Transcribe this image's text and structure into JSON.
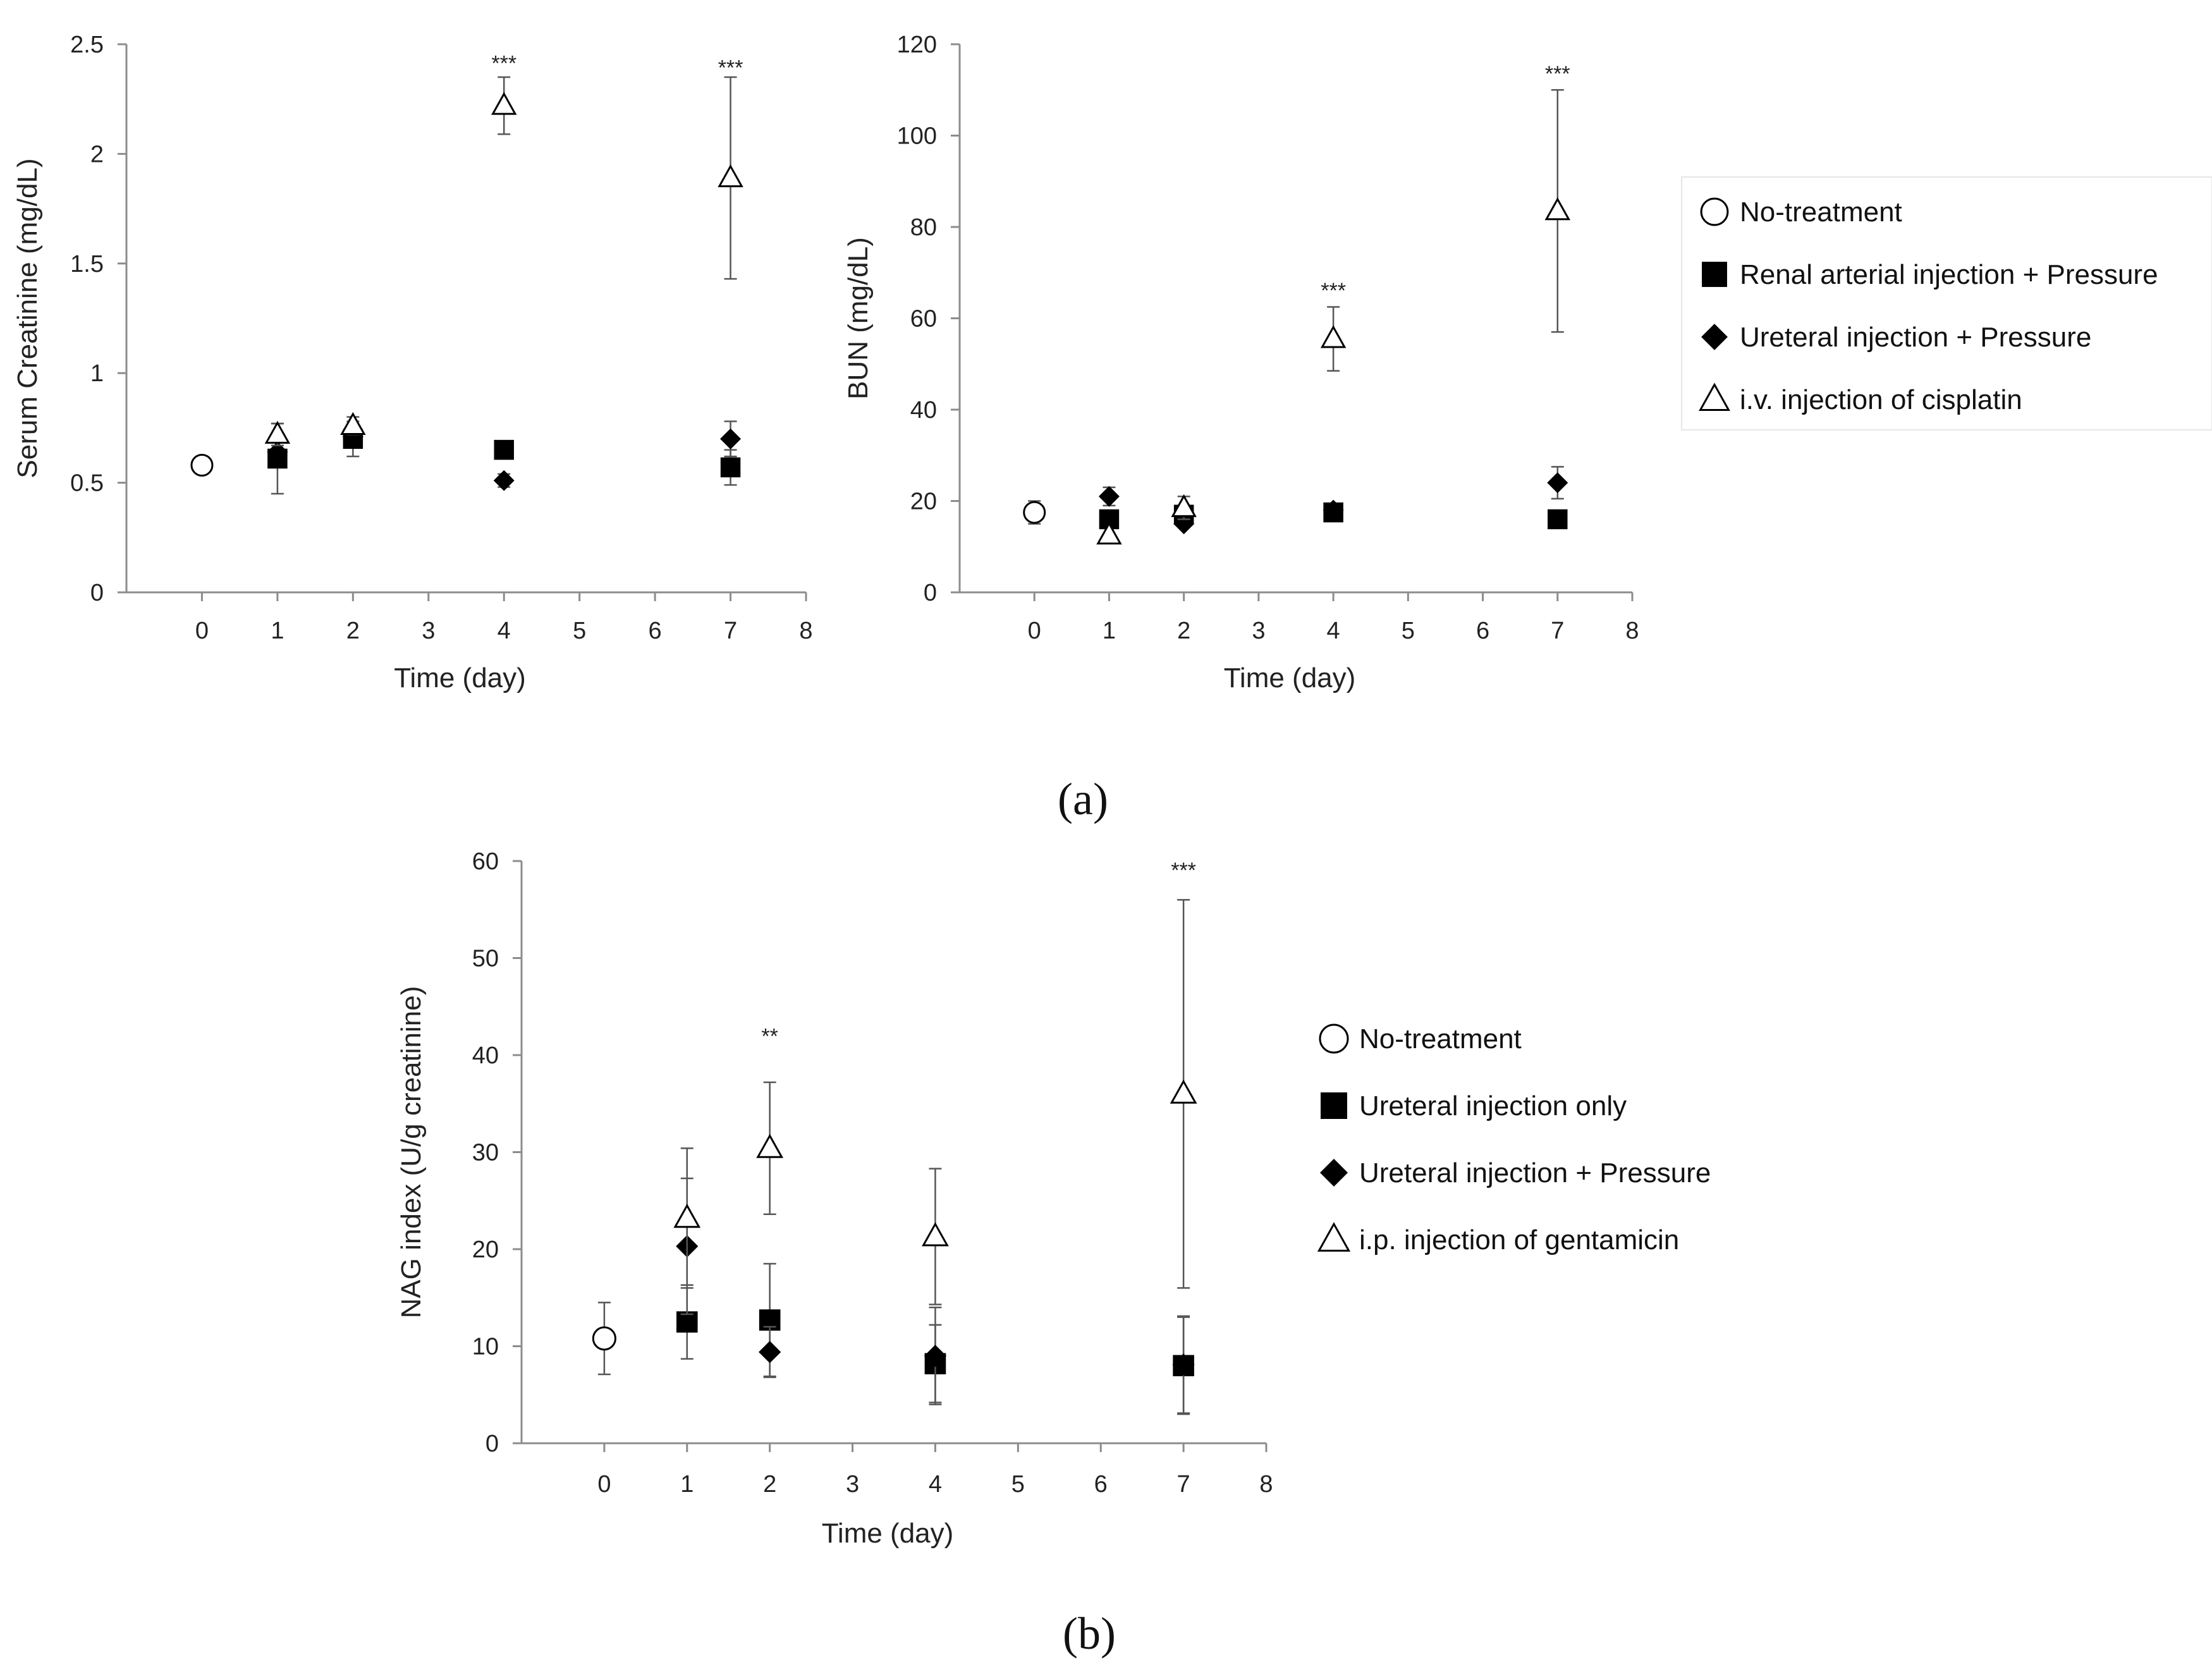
{
  "colors": {
    "axis": "#8c8c8c",
    "marker": "#000000",
    "errorbar": "#555555",
    "legend_border": "#e6e6e6"
  },
  "panel_labels": {
    "a": "(a)",
    "b": "(b)"
  },
  "chart_data": [
    {
      "id": "creatinine",
      "type": "scatter",
      "ylabel": "Serum Creatinine (mg/dL)",
      "xlabel": "Time (day)",
      "xlim": [
        -1,
        8
      ],
      "ylim": [
        0,
        2.5
      ],
      "xticks": [
        0,
        1,
        2,
        3,
        4,
        5,
        6,
        7,
        8
      ],
      "xtick_labels": [
        "0",
        "1",
        "2",
        "3",
        "4",
        "5",
        "6",
        "7",
        "8"
      ],
      "yticks": [
        0,
        0.5,
        1,
        1.5,
        2,
        2.5
      ],
      "ytick_labels": [
        "0",
        "0.5",
        "1",
        "1.5",
        "2",
        "2.5"
      ],
      "series": [
        {
          "name": "No-treatment",
          "marker": "circle-open",
          "points": [
            {
              "x": 0,
              "y": 0.58
            }
          ]
        },
        {
          "name": "Renal arterial injection + Pressure",
          "marker": "square-filled",
          "points": [
            {
              "x": 1,
              "y": 0.61,
              "err": 0.16
            },
            {
              "x": 2,
              "y": 0.7,
              "err": 0.08
            },
            {
              "x": 4,
              "y": 0.65
            },
            {
              "x": 7,
              "y": 0.57,
              "err": 0.08
            }
          ]
        },
        {
          "name": "Ureteral injection + Pressure",
          "marker": "diamond-filled",
          "points": [
            {
              "x": 1,
              "y": 0.64
            },
            {
              "x": 2,
              "y": 0.71
            },
            {
              "x": 4,
              "y": 0.51,
              "err": 0.03
            },
            {
              "x": 7,
              "y": 0.7,
              "err": 0.08
            }
          ]
        },
        {
          "name": "i.v. injection of cisplatin",
          "marker": "triangle-open",
          "points": [
            {
              "x": 1,
              "y": 0.72,
              "err": 0.05
            },
            {
              "x": 2,
              "y": 0.76,
              "err": 0.04
            },
            {
              "x": 4,
              "y": 2.22,
              "err": 0.13
            },
            {
              "x": 7,
              "y": 1.89,
              "err": 0.46
            }
          ]
        }
      ],
      "annotations": [
        {
          "x": 4,
          "y": 2.38,
          "text": "***"
        },
        {
          "x": 7,
          "y": 2.36,
          "text": "***"
        }
      ]
    },
    {
      "id": "bun",
      "type": "scatter",
      "ylabel": "BUN (mg/dL)",
      "xlabel": "Time (day)",
      "xlim": [
        -1,
        8
      ],
      "ylim": [
        0,
        120
      ],
      "xticks": [
        0,
        1,
        2,
        3,
        4,
        5,
        6,
        7,
        8
      ],
      "xtick_labels": [
        "0",
        "1",
        "2",
        "3",
        "4",
        "5",
        "6",
        "7",
        "8"
      ],
      "yticks": [
        0,
        20,
        40,
        60,
        80,
        100,
        120
      ],
      "ytick_labels": [
        "0",
        "20",
        "40",
        "60",
        "80",
        "100",
        "120"
      ],
      "series": [
        {
          "name": "No-treatment",
          "marker": "circle-open",
          "points": [
            {
              "x": 0,
              "y": 17.5,
              "err": 2.5
            }
          ]
        },
        {
          "name": "Renal arterial injection + Pressure",
          "marker": "square-filled",
          "points": [
            {
              "x": 1,
              "y": 16
            },
            {
              "x": 2,
              "y": 17
            },
            {
              "x": 4,
              "y": 17.5
            },
            {
              "x": 7,
              "y": 16
            }
          ]
        },
        {
          "name": "Ureteral injection + Pressure",
          "marker": "diamond-filled",
          "points": [
            {
              "x": 1,
              "y": 21,
              "err": 2
            },
            {
              "x": 2,
              "y": 15
            },
            {
              "x": 4,
              "y": 18
            },
            {
              "x": 7,
              "y": 24,
              "err": 3.5
            }
          ]
        },
        {
          "name": "i.v. injection of cisplatin",
          "marker": "triangle-open",
          "points": [
            {
              "x": 1,
              "y": 12.5
            },
            {
              "x": 2,
              "y": 18.5,
              "err": 2.5
            },
            {
              "x": 4,
              "y": 55.5,
              "err": 7
            },
            {
              "x": 7,
              "y": 83.5,
              "err": 26.5
            }
          ]
        }
      ],
      "annotations": [
        {
          "x": 4,
          "y": 64.5,
          "text": "***"
        },
        {
          "x": 7,
          "y": 112,
          "text": "***"
        }
      ],
      "legend": {
        "position": "right",
        "entries": [
          {
            "marker": "circle-open",
            "label": "No-treatment"
          },
          {
            "marker": "square-filled",
            "label": "Renal arterial injection + Pressure"
          },
          {
            "marker": "diamond-filled",
            "label": "Ureteral injection + Pressure"
          },
          {
            "marker": "triangle-open",
            "label": "i.v. injection of cisplatin"
          }
        ]
      }
    },
    {
      "id": "nag",
      "type": "scatter",
      "ylabel": "NAG index (U/g creatinine)",
      "xlabel": "Time (day)",
      "xlim": [
        -1,
        8
      ],
      "ylim": [
        0,
        60
      ],
      "xticks": [
        0,
        1,
        2,
        3,
        4,
        5,
        6,
        7,
        8
      ],
      "xtick_labels": [
        "0",
        "1",
        "2",
        "3",
        "4",
        "5",
        "6",
        "7",
        "8"
      ],
      "yticks": [
        0,
        10,
        20,
        30,
        40,
        50,
        60
      ],
      "ytick_labels": [
        "0",
        "10",
        "20",
        "30",
        "40",
        "50",
        "60"
      ],
      "series": [
        {
          "name": "No-treatment",
          "marker": "circle-open",
          "points": [
            {
              "x": 0,
              "y": 10.8,
              "err": 3.7
            }
          ]
        },
        {
          "name": "Ureteral injection only",
          "marker": "square-filled",
          "points": [
            {
              "x": 1,
              "y": 12.5,
              "err": 3.8
            },
            {
              "x": 2,
              "y": 12.7,
              "err": 5.8
            },
            {
              "x": 4,
              "y": 8.2,
              "err": 4.0
            },
            {
              "x": 7,
              "y": 8.0,
              "err": 5.0
            }
          ]
        },
        {
          "name": "Ureteral injection + Pressure",
          "marker": "diamond-filled",
          "points": [
            {
              "x": 1,
              "y": 20.3,
              "err": 7.0
            },
            {
              "x": 2,
              "y": 9.4,
              "err": 2.6
            },
            {
              "x": 4,
              "y": 9.0,
              "err": 5.0
            },
            {
              "x": 7,
              "y": 8.1,
              "err": 5.0
            }
          ]
        },
        {
          "name": "i.p. injection of gentamicin",
          "marker": "triangle-open",
          "points": [
            {
              "x": 1,
              "y": 23.2,
              "err": 7.2
            },
            {
              "x": 2,
              "y": 30.4,
              "err": 6.8
            },
            {
              "x": 4,
              "y": 21.3,
              "err": 7.0
            },
            {
              "x": 7,
              "y": 36.0,
              "err": 20.0
            }
          ]
        }
      ],
      "annotations": [
        {
          "x": 2,
          "y": 41.2,
          "text": "**"
        },
        {
          "x": 7,
          "y": 58.3,
          "text": "***"
        }
      ],
      "legend": {
        "position": "right",
        "entries": [
          {
            "marker": "circle-open",
            "label": "No-treatment"
          },
          {
            "marker": "square-filled",
            "label": "Ureteral injection only"
          },
          {
            "marker": "diamond-filled",
            "label": "Ureteral injection + Pressure"
          },
          {
            "marker": "triangle-open",
            "label": "i.p. injection of gentamicin"
          }
        ]
      }
    }
  ]
}
